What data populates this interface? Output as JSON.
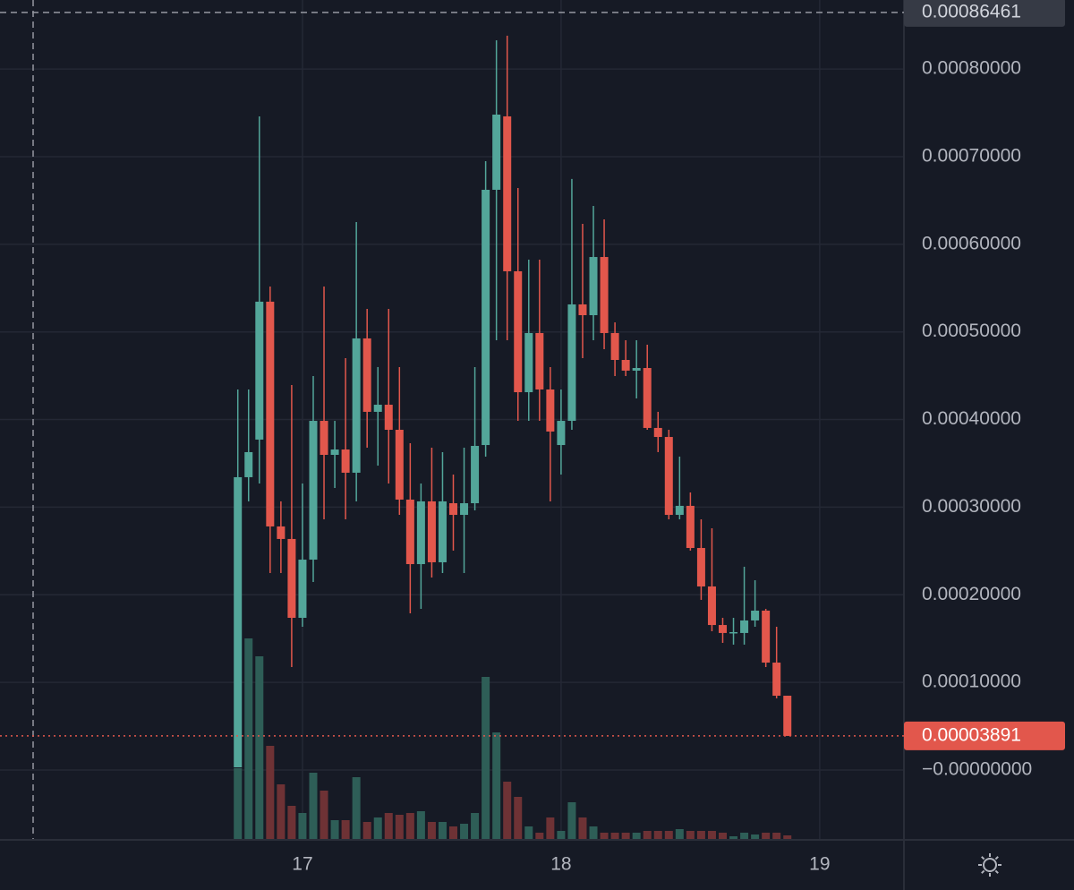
{
  "chart_data": {
    "type": "candlestick",
    "categories": [
      null,
      null,
      null,
      null,
      null,
      null,
      null,
      null,
      null,
      null,
      null,
      null,
      null,
      null,
      null,
      null,
      null,
      null,
      null,
      null,
      null,
      null,
      null,
      null,
      null,
      null,
      null,
      null,
      null,
      null,
      null,
      null,
      null,
      null,
      null,
      null,
      null,
      null,
      null,
      null,
      null,
      null,
      null,
      null,
      null,
      null,
      null,
      null,
      null,
      null,
      null,
      null
    ],
    "open": [
      3.07e-06,
      0.0003342,
      0.0003771,
      0.0005345,
      0.000278,
      0.0002637,
      0.0001737,
      0.0002401,
      0.0003985,
      0.0003597,
      0.0003658,
      0.0003393,
      0.0004926,
      0.0004088,
      0.0004169,
      0.0003883,
      0.0003086,
      0.000235,
      0.0003066,
      0.0002371,
      0.0003045,
      0.0002912,
      0.0003045,
      0.0003709,
      0.0006622,
      0.000746,
      0.0005692,
      0.0004312,
      0.0004987,
      0.0004343,
      0.0003709,
      0.0003985,
      0.0005314,
      0.0005191,
      0.0005855,
      0.0004987,
      0.000468,
      0.0004558,
      0.0004588,
      0.0003904,
      0.0003801,
      0.0002912,
      0.0003015,
      0.0002534,
      0.0002095,
      0.0001655,
      0.0001564,
      0.0001564,
      0.0001707,
      0.0001819,
      0.0001226,
      8.48e-05
    ],
    "high": [
      0.0004343,
      0.0004343,
      0.000746,
      0.0005518,
      0.0003066,
      0.0004394,
      0.000327,
      0.0004496,
      0.0005518,
      0.0003985,
      0.0004701,
      0.0006254,
      0.0005263,
      0.0004599,
      0.0005263,
      0.0004599,
      0.000373,
      0.000327,
      0.0003679,
      0.0003628,
      0.0003372,
      0.0003679,
      0.0004599,
      0.0006949,
      0.0008328,
      0.000838,
      0.0006642,
      0.0005825,
      0.0005825,
      0.0004599,
      0.0004343,
      0.0006745,
      0.0006234,
      0.0006438,
      0.0006285,
      0.0005109,
      0.0004905,
      0.0004905,
      0.0004854,
      0.0004088,
      0.0003883,
      0.0003577,
      0.0003168,
      0.0002861,
      0.0002759,
      0.0001737,
      0.0001737,
      0.000232,
      0.0002166,
      0.0001839,
      0.0001635,
      8.48e-05
    ],
    "low": [
      3.07e-06,
      0.0003066,
      0.000327,
      0.0002248,
      0.0002248,
      0.0001175,
      0.0001635,
      0.0002146,
      0.0002861,
      0.0003219,
      0.0002861,
      0.0003066,
      0.0003679,
      0.0003474,
      0.000327,
      0.0002912,
      0.0001788,
      0.0001839,
      0.0002197,
      0.0002248,
      0.0002504,
      0.0002248,
      0.0002964,
      0.0003577,
      0.0004905,
      0.0004905,
      0.0003985,
      0.0003985,
      0.0003985,
      0.0003066,
      0.0003372,
      0.0003883,
      0.0004701,
      0.0004905,
      0.0004803,
      0.0004496,
      0.0004496,
      0.0004241,
      0.0003883,
      0.0003628,
      0.0002861,
      0.0002861,
      0.0002504,
      0.0001942,
      0.0001584,
      0.0001451,
      0.0001431,
      0.0001431,
      0.0001635,
      0.0001175,
      8.18e-05,
      3.891e-05
    ],
    "close": [
      0.0003342,
      0.0003628,
      0.0005345,
      0.000278,
      0.0002637,
      0.0001737,
      0.0002401,
      0.0003985,
      0.0003597,
      0.0003658,
      0.0003393,
      0.0004926,
      0.0004088,
      0.0004169,
      0.0003883,
      0.0003086,
      0.000235,
      0.0003066,
      0.0002371,
      0.0003066,
      0.0002912,
      0.0003045,
      0.0003699,
      0.0006622,
      0.000748,
      0.0005692,
      0.0004312,
      0.0004987,
      0.0004343,
      0.0003863,
      0.0003985,
      0.0005314,
      0.0005191,
      0.0005855,
      0.0004987,
      0.000468,
      0.0004558,
      0.0004588,
      0.0003904,
      0.0003801,
      0.0002912,
      0.0003015,
      0.0002534,
      0.0002095,
      0.0001655,
      0.0001564,
      0.0001574,
      0.0001707,
      0.0001819,
      0.0001226,
      8.48e-05,
      3.891e-05
    ],
    "volume": [
      80,
      225,
      205,
      105,
      62,
      38,
      30,
      75,
      55,
      22,
      22,
      70,
      20,
      25,
      30,
      28,
      30,
      32,
      20,
      20,
      15,
      18,
      30,
      182,
      120,
      65,
      48,
      15,
      8,
      25,
      10,
      42,
      25,
      15,
      8,
      8,
      8,
      8,
      10,
      10,
      10,
      12,
      10,
      10,
      10,
      8,
      4,
      8,
      6,
      8,
      8,
      5
    ],
    "volume_ylim": [
      0,
      300
    ],
    "up_color": "#53a69a",
    "down_color": "#e2574c",
    "volume_up_color": "#2e5e57",
    "volume_down_color": "#6e3235",
    "xlim": [
      -22.07,
      61.82
    ],
    "xticks": [
      {
        "value": 6,
        "label": "17"
      },
      {
        "value": 30,
        "label": "18"
      },
      {
        "value": 54,
        "label": "19"
      }
    ],
    "ylim": [
      -7.97e-05,
      0.0008788
    ],
    "yticks": [
      {
        "value": 0.0008,
        "label": "0.00080000"
      },
      {
        "value": 0.0007,
        "label": "0.00070000"
      },
      {
        "value": 0.0006,
        "label": "0.00060000"
      },
      {
        "value": 0.0005,
        "label": "0.00050000"
      },
      {
        "value": 0.0004,
        "label": "0.00040000"
      },
      {
        "value": 0.0003,
        "label": "0.00030000"
      },
      {
        "value": 0.0002,
        "label": "0.00020000"
      },
      {
        "value": 0.0001,
        "label": "0.00010000"
      },
      {
        "value": 0,
        "label": "−0.00000000"
      }
    ],
    "grid": true,
    "last_price": 3.891e-05,
    "crosshair_price": 0.00086461
  }
}
